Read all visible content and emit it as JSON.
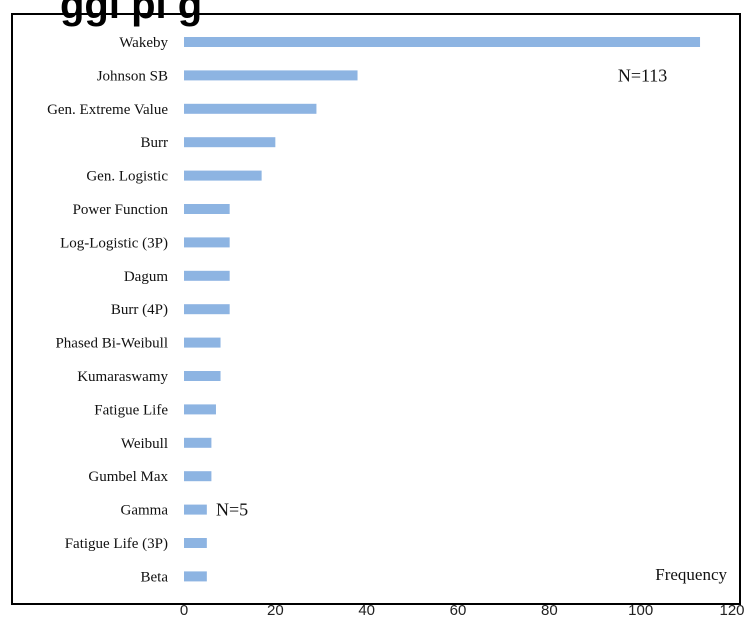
{
  "chart_data": {
    "type": "bar",
    "orientation": "horizontal",
    "categories": [
      "Wakeby",
      "Johnson SB",
      "Gen. Extreme Value",
      "Burr",
      "Gen. Logistic",
      "Power Function",
      "Log-Logistic (3P)",
      "Dagum",
      "Burr (4P)",
      "Phased Bi-Weibull",
      "Kumaraswamy",
      "Fatigue Life",
      "Weibull",
      "Gumbel Max",
      "Gamma",
      "Fatigue Life (3P)",
      "Beta"
    ],
    "values": [
      113,
      38,
      29,
      20,
      17,
      10,
      10,
      10,
      10,
      8,
      8,
      7,
      6,
      6,
      5,
      5,
      5
    ],
    "xlabel": "Frequency",
    "ylabel": "",
    "xlim": [
      0,
      120
    ],
    "xticks": [
      0,
      20,
      40,
      60,
      80,
      100,
      120
    ],
    "xtick_labels": [
      "0",
      "20",
      "40",
      "60",
      "80",
      "100",
      "120"
    ],
    "grid": false,
    "bar_color": "#8db4e2",
    "annotations": [
      {
        "text": "N=113",
        "category": "Johnson SB",
        "x": 95
      },
      {
        "text": "N=5",
        "category": "Gamma",
        "x": 7
      }
    ],
    "partial_title_fragment": "ggi  pi  g"
  }
}
